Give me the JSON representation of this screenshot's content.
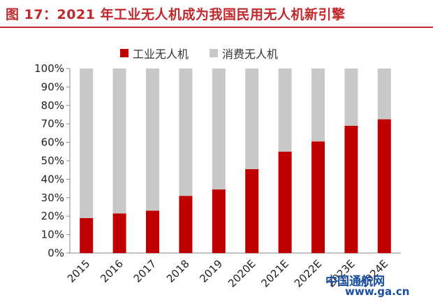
{
  "title": "图 17：2021 年工业无人机成为我国民用无人机新引擎",
  "watermark": {
    "text": "中国通航网",
    "url": "www.ga.cn"
  },
  "colors": {
    "industrial": "#c00000",
    "consumer": "#c8c8c8",
    "title": "#c0282b"
  },
  "chart_data": {
    "type": "bar",
    "stacked": true,
    "categories": [
      "2015",
      "2016",
      "2017",
      "2018",
      "2019",
      "2020E",
      "2021E",
      "2022E",
      "2023E",
      "2024E"
    ],
    "series": [
      {
        "name": "工业无人机",
        "values": [
          19,
          21.5,
          23,
          31,
          34.5,
          45.5,
          55,
          60.5,
          69,
          72.5
        ]
      },
      {
        "name": "消费无人机",
        "values": [
          81,
          78.5,
          77,
          69,
          65.5,
          54.5,
          45,
          39.5,
          31,
          27.5
        ]
      }
    ],
    "yticks": [
      "0%",
      "10%",
      "20%",
      "30%",
      "40%",
      "50%",
      "60%",
      "70%",
      "80%",
      "90%",
      "100%"
    ],
    "ylim": [
      0,
      100
    ],
    "legend_position": "top",
    "grid": false
  }
}
